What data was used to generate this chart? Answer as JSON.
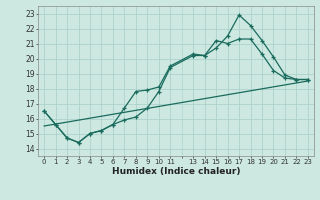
{
  "xlabel": "Humidex (Indice chaleur)",
  "ylabel": "",
  "bg_color": "#cce8e0",
  "grid_color": "#a8cfc8",
  "line_color": "#1a6b5e",
  "xlim": [
    -0.5,
    23.5
  ],
  "ylim": [
    13.5,
    23.5
  ],
  "xticks": [
    0,
    1,
    2,
    3,
    4,
    5,
    6,
    7,
    8,
    9,
    10,
    11,
    13,
    14,
    15,
    16,
    17,
    18,
    19,
    20,
    21,
    22,
    23
  ],
  "yticks": [
    14,
    15,
    16,
    17,
    18,
    19,
    20,
    21,
    22,
    23
  ],
  "line1_x": [
    0,
    1,
    2,
    3,
    4,
    5,
    6,
    7,
    8,
    9,
    10,
    11,
    13,
    14,
    15,
    16,
    17,
    18,
    19,
    20,
    21,
    22,
    23
  ],
  "line1_y": [
    16.5,
    15.6,
    14.7,
    14.4,
    15.0,
    15.2,
    15.6,
    15.9,
    16.1,
    16.7,
    17.8,
    19.4,
    20.2,
    20.2,
    20.7,
    21.5,
    22.9,
    22.2,
    21.2,
    20.1,
    18.9,
    18.6,
    18.6
  ],
  "line2_x": [
    0,
    1,
    2,
    3,
    4,
    5,
    6,
    7,
    8,
    9,
    10,
    11,
    13,
    14,
    15,
    16,
    17,
    18,
    19,
    20,
    21,
    22,
    23
  ],
  "line2_y": [
    16.5,
    15.6,
    14.7,
    14.4,
    15.0,
    15.2,
    15.6,
    16.7,
    17.8,
    17.9,
    18.1,
    19.5,
    20.3,
    20.2,
    21.2,
    21.0,
    21.3,
    21.3,
    20.3,
    19.2,
    18.7,
    18.6,
    18.6
  ],
  "line3_x": [
    0,
    23
  ],
  "line3_y": [
    15.5,
    18.5
  ]
}
